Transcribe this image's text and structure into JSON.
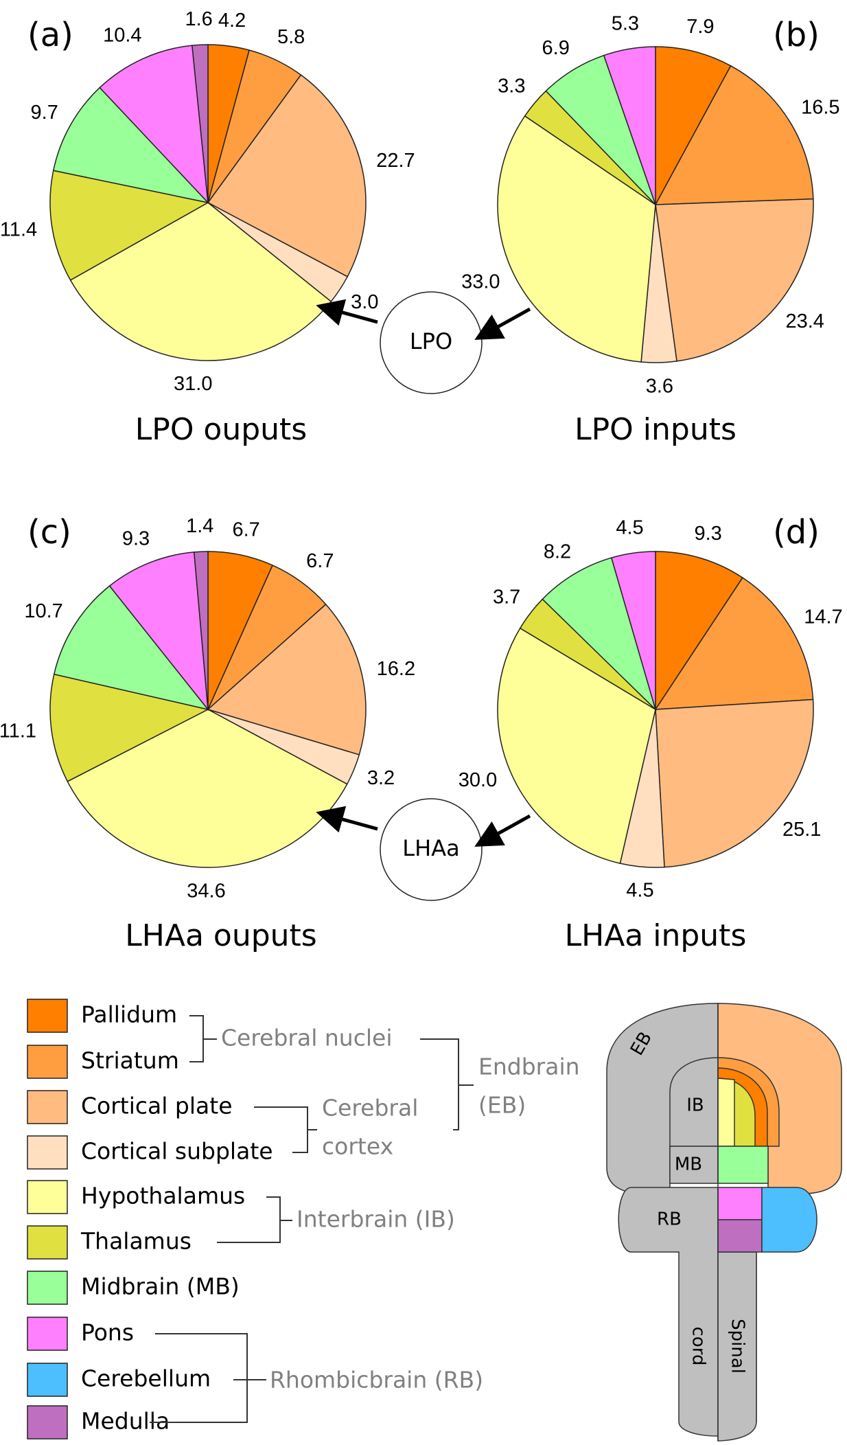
{
  "chart_data": [
    {
      "type": "pie",
      "panel": "(a)",
      "title": "LPO ouputs",
      "categories": [
        "Pallidum",
        "Striatum",
        "Cortical plate",
        "Cortical subplate",
        "Hypothalamus",
        "Thalamus",
        "Midbrain (MB)",
        "Pons",
        "Medulla"
      ],
      "values": [
        4.2,
        5.8,
        22.7,
        3.0,
        31.0,
        11.4,
        9.7,
        10.4,
        1.6
      ],
      "value_labels": [
        "4.2",
        "5.8",
        "22.7",
        "3.0",
        "31.0",
        "11.4",
        "9.7",
        "10.4",
        "1.6"
      ],
      "colors": [
        "#ff7f00",
        "#ff9e40",
        "#ffbb80",
        "#ffdfbf",
        "#ffff99",
        "#e0e040",
        "#99ff99",
        "#ff80ff",
        "#bf6fbf"
      ]
    },
    {
      "type": "pie",
      "panel": "(b)",
      "title": "LPO inputs",
      "categories": [
        "Pallidum",
        "Striatum",
        "Cortical plate",
        "Cortical subplate",
        "Hypothalamus",
        "Thalamus",
        "Midbrain (MB)",
        "Pons"
      ],
      "values": [
        7.9,
        16.5,
        23.4,
        3.6,
        33.0,
        3.3,
        6.9,
        5.3
      ],
      "value_labels": [
        "7.9",
        "16.5",
        "23.4",
        "3.6",
        "33.0",
        "3.3",
        "6.9",
        "5.3"
      ],
      "colors": [
        "#ff7f00",
        "#ff9e40",
        "#ffbb80",
        "#ffdfbf",
        "#ffff99",
        "#e0e040",
        "#99ff99",
        "#ff80ff"
      ]
    },
    {
      "type": "pie",
      "panel": "(c)",
      "title": "LHAa ouputs",
      "categories": [
        "Pallidum",
        "Striatum",
        "Cortical plate",
        "Cortical subplate",
        "Hypothalamus",
        "Thalamus",
        "Midbrain (MB)",
        "Pons",
        "Medulla"
      ],
      "values": [
        6.7,
        6.7,
        16.2,
        3.2,
        34.6,
        11.1,
        10.7,
        9.3,
        1.4
      ],
      "value_labels": [
        "6.7",
        "6.7",
        "16.2",
        "3.2",
        "34.6",
        "11.1",
        "10.7",
        "9.3",
        "1.4"
      ],
      "colors": [
        "#ff7f00",
        "#ff9e40",
        "#ffbb80",
        "#ffdfbf",
        "#ffff99",
        "#e0e040",
        "#99ff99",
        "#ff80ff",
        "#bf6fbf"
      ]
    },
    {
      "type": "pie",
      "panel": "(d)",
      "title": "LHAa inputs",
      "categories": [
        "Pallidum",
        "Striatum",
        "Cortical plate",
        "Cortical subplate",
        "Hypothalamus",
        "Thalamus",
        "Midbrain (MB)",
        "Pons"
      ],
      "values": [
        9.3,
        14.7,
        25.1,
        4.5,
        30.0,
        3.7,
        8.2,
        4.5
      ],
      "value_labels": [
        "9.3",
        "14.7",
        "25.1",
        "4.5",
        "30.0",
        "3.7",
        "8.2",
        "4.5"
      ],
      "colors": [
        "#ff7f00",
        "#ff9e40",
        "#ffbb80",
        "#ffdfbf",
        "#ffff99",
        "#e0e040",
        "#99ff99",
        "#ff80ff"
      ]
    }
  ],
  "nodes": [
    "LPO",
    "LHAa"
  ],
  "legend": {
    "items": [
      {
        "name": "Pallidum",
        "color": "#ff7f00"
      },
      {
        "name": "Striatum",
        "color": "#ff9e40"
      },
      {
        "name": "Cortical plate",
        "color": "#ffbb80"
      },
      {
        "name": "Cortical subplate",
        "color": "#ffdfbf"
      },
      {
        "name": "Hypothalamus",
        "color": "#ffff99"
      },
      {
        "name": "Thalamus",
        "color": "#e0e040"
      },
      {
        "name": "Midbrain (MB)",
        "color": "#99ff99"
      },
      {
        "name": "Pons",
        "color": "#ff80ff"
      },
      {
        "name": "Cerebellum",
        "color": "#4dbfff"
      },
      {
        "name": "Medulla",
        "color": "#bf6fbf"
      }
    ],
    "groups": [
      {
        "lines": [
          "Cerebral nuclei"
        ]
      },
      {
        "lines": [
          "Cerebral",
          "cortex"
        ]
      },
      {
        "lines": [
          "Endbrain",
          "(EB)"
        ]
      },
      {
        "lines": [
          "Interbrain (IB)"
        ]
      },
      {
        "lines": [
          "Rhombicbrain (RB)"
        ]
      }
    ]
  },
  "diagram": {
    "labels": [
      "EB",
      "IB",
      "MB",
      "RB",
      "Spinal",
      "cord"
    ]
  }
}
